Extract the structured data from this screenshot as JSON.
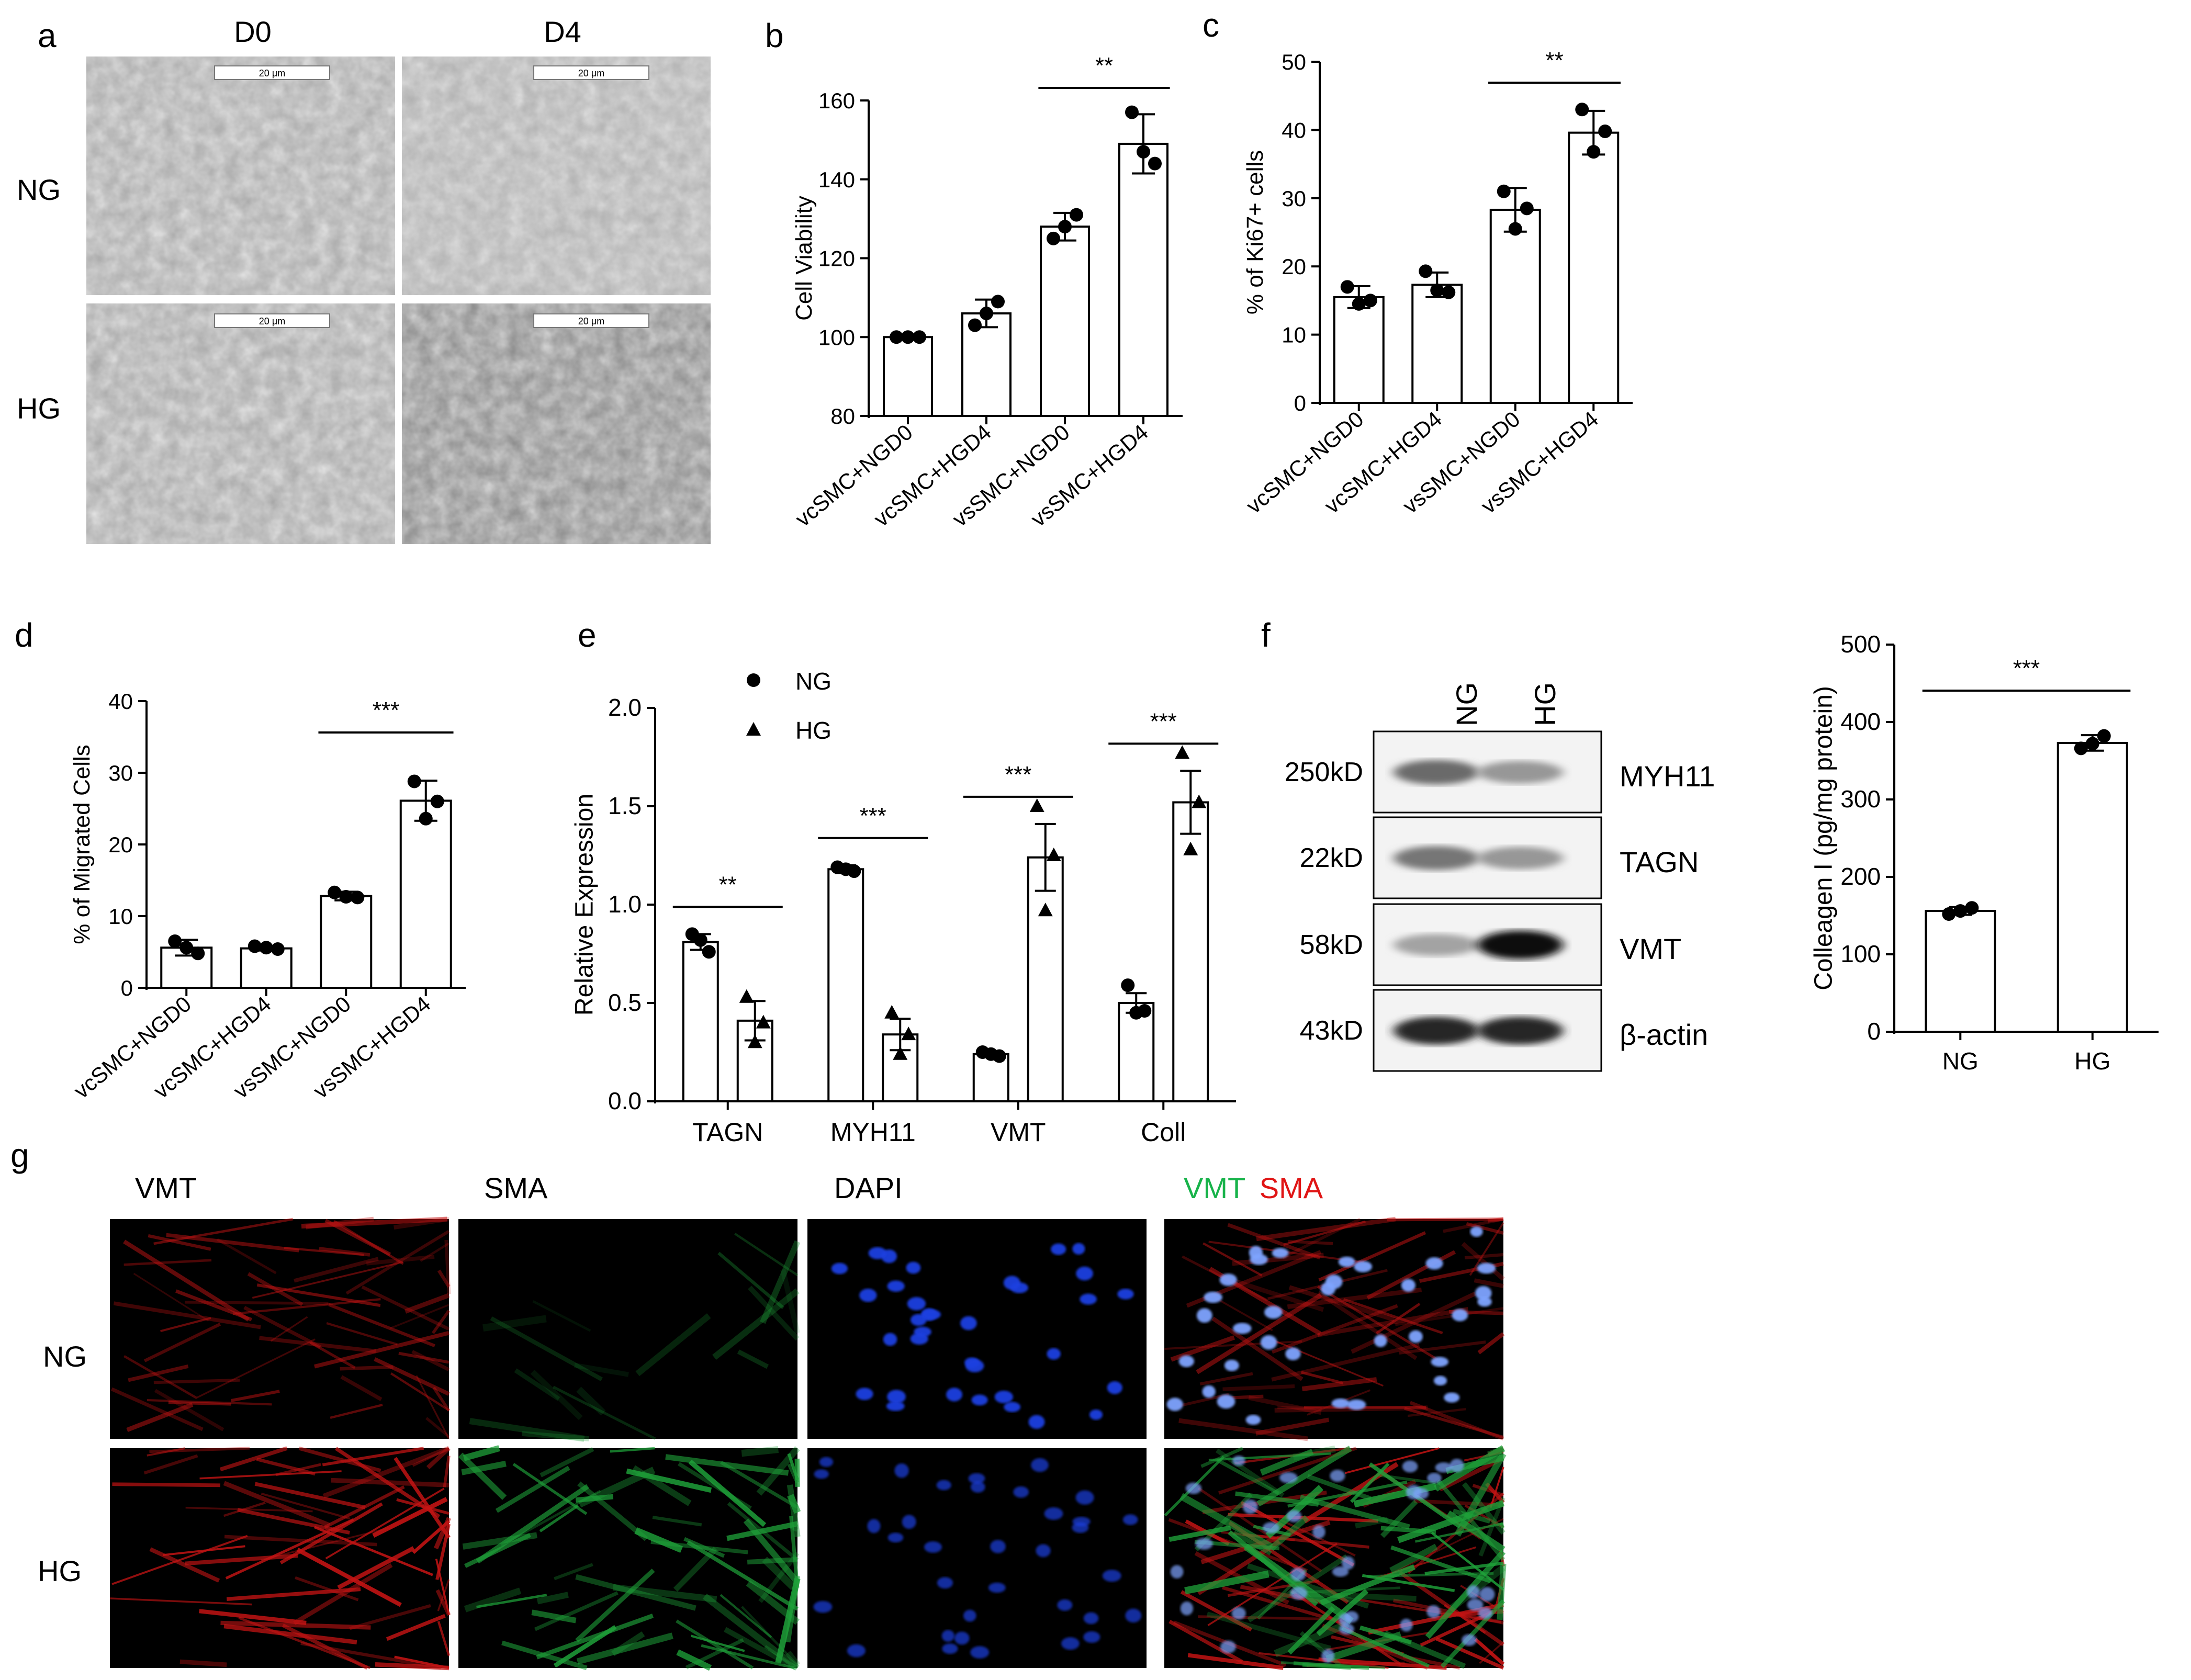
{
  "panel_letters": {
    "a": "a",
    "b": "b",
    "c": "c",
    "d": "d",
    "e": "e",
    "f": "f",
    "g": "g"
  },
  "panel_a": {
    "columns": [
      "D0",
      "D4"
    ],
    "rows": [
      "NG",
      "HG"
    ],
    "scale_bar_label": "20 μm"
  },
  "western": {
    "lane_labels": [
      "NG",
      "HG"
    ],
    "bands": [
      {
        "kd": "250kD",
        "protein": "MYH11",
        "ng": 0.55,
        "hg": 0.35
      },
      {
        "kd": "22kD",
        "protein": "TAGN",
        "ng": 0.5,
        "hg": 0.35
      },
      {
        "kd": "58kD",
        "protein": "VMT",
        "ng": 0.3,
        "hg": 0.95
      },
      {
        "kd": "43kD",
        "protein": "β-actin",
        "ng": 0.85,
        "hg": 0.85
      }
    ]
  },
  "panel_g": {
    "columns": [
      "VMT",
      "SMA",
      "DAPI"
    ],
    "merge_label_green": "VMT",
    "merge_label_red": "SMA",
    "rows": [
      "NG",
      "HG"
    ],
    "colors": {
      "red": "#c41414",
      "green": "#1fa23a",
      "blue": "#1f3fe0",
      "text_green": "#17b34a",
      "text_red": "#e01515"
    }
  },
  "chart_data": [
    {
      "id": "b",
      "type": "bar",
      "categories": [
        "vcSMC+NGD0",
        "vcSMC+HGD4",
        "vsSMC+NGD0",
        "vsSMC+HGD4"
      ],
      "values": [
        100,
        106,
        128,
        149
      ],
      "errors": [
        0.5,
        3.5,
        3.5,
        7.5
      ],
      "points": [
        [
          100,
          100,
          100
        ],
        [
          103,
          109,
          106
        ],
        [
          125,
          131,
          128
        ],
        [
          157,
          144,
          147
        ]
      ],
      "ylabel": "Cell Viability",
      "ylim": [
        80,
        160
      ],
      "yticks": [
        80,
        100,
        120,
        140,
        160
      ],
      "significance": [
        {
          "from": 2,
          "to": 3,
          "label": "**"
        }
      ]
    },
    {
      "id": "c",
      "type": "bar",
      "categories": [
        "vcSMC+NGD0",
        "vcSMC+HGD4",
        "vsSMC+NGD0",
        "vsSMC+HGD4"
      ],
      "values": [
        15.5,
        17.3,
        28.3,
        39.6
      ],
      "errors": [
        1.6,
        1.8,
        3.2,
        3.2
      ],
      "points": [
        [
          17,
          15,
          14.5
        ],
        [
          19.3,
          16.2,
          16.5
        ],
        [
          31,
          28.5,
          25.5
        ],
        [
          43,
          39.8,
          36.8
        ]
      ],
      "ylabel": "% of Ki67+ cells",
      "ylim": [
        0,
        50
      ],
      "yticks": [
        0,
        10,
        20,
        30,
        40,
        50
      ],
      "significance": [
        {
          "from": 2,
          "to": 3,
          "label": "**"
        }
      ]
    },
    {
      "id": "d",
      "type": "bar",
      "categories": [
        "vcSMC+NGD0",
        "vcSMC+HGD4",
        "vsSMC+NGD0",
        "vsSMC+HGD4"
      ],
      "values": [
        5.6,
        5.5,
        12.8,
        26.1
      ],
      "errors": [
        1.1,
        0.3,
        0.6,
        2.8
      ],
      "points": [
        [
          6.5,
          4.8,
          5.6
        ],
        [
          5.8,
          5.4,
          5.6
        ],
        [
          13.3,
          12.6,
          12.7
        ],
        [
          28.8,
          26,
          23.6
        ]
      ],
      "ylabel": "% of Migrated Cells",
      "ylim": [
        0,
        40
      ],
      "yticks": [
        0,
        10,
        20,
        30,
        40
      ],
      "significance": [
        {
          "from": 2,
          "to": 3,
          "label": "***"
        }
      ]
    },
    {
      "id": "e",
      "type": "bar",
      "categories": [
        "TAGN",
        "MYH11",
        "VMT",
        "Coll"
      ],
      "series": [
        {
          "name": "NG",
          "values": [
            0.81,
            1.18,
            0.24,
            0.5
          ],
          "errors": [
            0.04,
            0.02,
            0.01,
            0.05
          ],
          "points": [
            [
              0.85,
              0.76,
              0.82
            ],
            [
              1.19,
              1.17,
              1.18
            ],
            [
              0.25,
              0.23,
              0.24
            ],
            [
              0.59,
              0.46,
              0.45
            ]
          ]
        },
        {
          "name": "HG",
          "values": [
            0.41,
            0.34,
            1.24,
            1.52
          ],
          "errors": [
            0.1,
            0.08,
            0.17,
            0.16
          ],
          "points": [
            [
              0.53,
              0.4,
              0.3
            ],
            [
              0.45,
              0.34,
              0.24
            ],
            [
              1.5,
              1.25,
              0.97
            ],
            [
              1.77,
              1.52,
              1.28
            ]
          ]
        }
      ],
      "ylabel": "Relative Expression",
      "ylim": [
        0,
        2
      ],
      "yticks": [
        "0.0",
        "0.5",
        "1.0",
        "1.5",
        "2.0"
      ],
      "legend": "top-left",
      "significance": [
        "**",
        "***",
        "***",
        "***"
      ]
    },
    {
      "id": "f",
      "type": "bar",
      "categories": [
        "NG",
        "HG"
      ],
      "values": [
        156,
        373
      ],
      "errors": [
        5,
        10
      ],
      "points": [
        [
          152,
          160,
          156
        ],
        [
          366,
          382,
          372
        ]
      ],
      "ylabel": "Colleagen I (pg/mg protein)",
      "ylim": [
        0,
        500
      ],
      "yticks": [
        0,
        100,
        200,
        300,
        400,
        500
      ],
      "significance": [
        {
          "from": 0,
          "to": 1,
          "label": "***"
        }
      ]
    }
  ]
}
